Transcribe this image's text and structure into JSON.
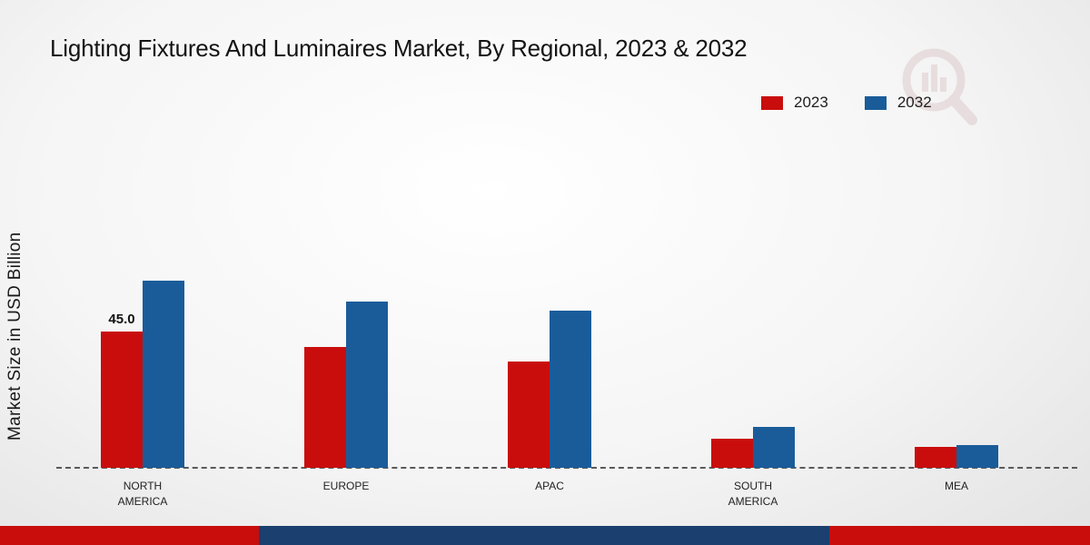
{
  "title": "Lighting Fixtures And Luminaires Market, By Regional, 2023 & 2032",
  "colors": {
    "series_2023": "#c90d0d",
    "series_2032": "#1a5c99",
    "footer_red": "#c90d0d",
    "footer_navy": "#1b3f6e",
    "background_start": "#ffffff",
    "background_end": "#e2e2e2",
    "baseline": "#5a5a5a"
  },
  "legend": {
    "position": "top-right",
    "items": [
      "2023",
      "2032"
    ]
  },
  "chart_data": {
    "type": "bar",
    "title": "Lighting Fixtures And Luminaires Market, By Regional, 2023 & 2032",
    "ylabel": "Market Size in USD Billion",
    "xlabel": "",
    "categories": [
      "NORTH AMERICA",
      "EUROPE",
      "APAC",
      "SOUTH AMERICA",
      "MEA"
    ],
    "series": [
      {
        "name": "2023",
        "color": "#c90d0d",
        "values": [
          45.0,
          40.0,
          35.0,
          9.5,
          7.0
        ]
      },
      {
        "name": "2032",
        "color": "#1a5c99",
        "values": [
          62.0,
          55.0,
          52.0,
          13.5,
          7.5
        ]
      }
    ],
    "annotations": [
      {
        "series": "2023",
        "category": "NORTH AMERICA",
        "text": "45.0"
      }
    ],
    "ylim": [
      0,
      70
    ],
    "grid": false,
    "legend_position": "top-right",
    "baseline_style": "dashed",
    "y_axis_ticks_visible": false
  }
}
